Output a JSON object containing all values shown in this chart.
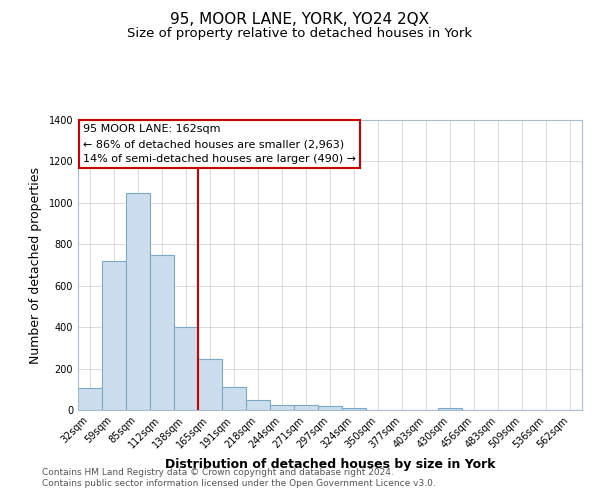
{
  "title": "95, MOOR LANE, YORK, YO24 2QX",
  "subtitle": "Size of property relative to detached houses in York",
  "xlabel": "Distribution of detached houses by size in York",
  "ylabel": "Number of detached properties",
  "footer_line1": "Contains HM Land Registry data © Crown copyright and database right 2024.",
  "footer_line2": "Contains public sector information licensed under the Open Government Licence v3.0.",
  "bin_labels": [
    "32sqm",
    "59sqm",
    "85sqm",
    "112sqm",
    "138sqm",
    "165sqm",
    "191sqm",
    "218sqm",
    "244sqm",
    "271sqm",
    "297sqm",
    "324sqm",
    "350sqm",
    "377sqm",
    "403sqm",
    "430sqm",
    "456sqm",
    "483sqm",
    "509sqm",
    "536sqm",
    "562sqm"
  ],
  "bar_values": [
    105,
    720,
    1050,
    750,
    400,
    245,
    110,
    48,
    25,
    25,
    20,
    8,
    0,
    0,
    0,
    12,
    0,
    0,
    0,
    0,
    0
  ],
  "bar_color": "#ccdded",
  "bar_edge_color": "#7aaac8",
  "property_bin_index": 5,
  "red_line_label": "95 MOOR LANE: 162sqm",
  "annotation_line1": "← 86% of detached houses are smaller (2,963)",
  "annotation_line2": "14% of semi-detached houses are larger (490) →",
  "annotation_box_color": "#ffffff",
  "annotation_box_edge_color": "#cc0000",
  "red_line_color": "#cc0000",
  "ylim": [
    0,
    1400
  ],
  "yticks": [
    0,
    200,
    400,
    600,
    800,
    1000,
    1200,
    1400
  ],
  "background_color": "#ffffff",
  "grid_color": "#cccccc",
  "title_fontsize": 11,
  "subtitle_fontsize": 9.5,
  "axis_label_fontsize": 9,
  "tick_fontsize": 7,
  "footer_fontsize": 6.5,
  "annotation_fontsize": 8
}
